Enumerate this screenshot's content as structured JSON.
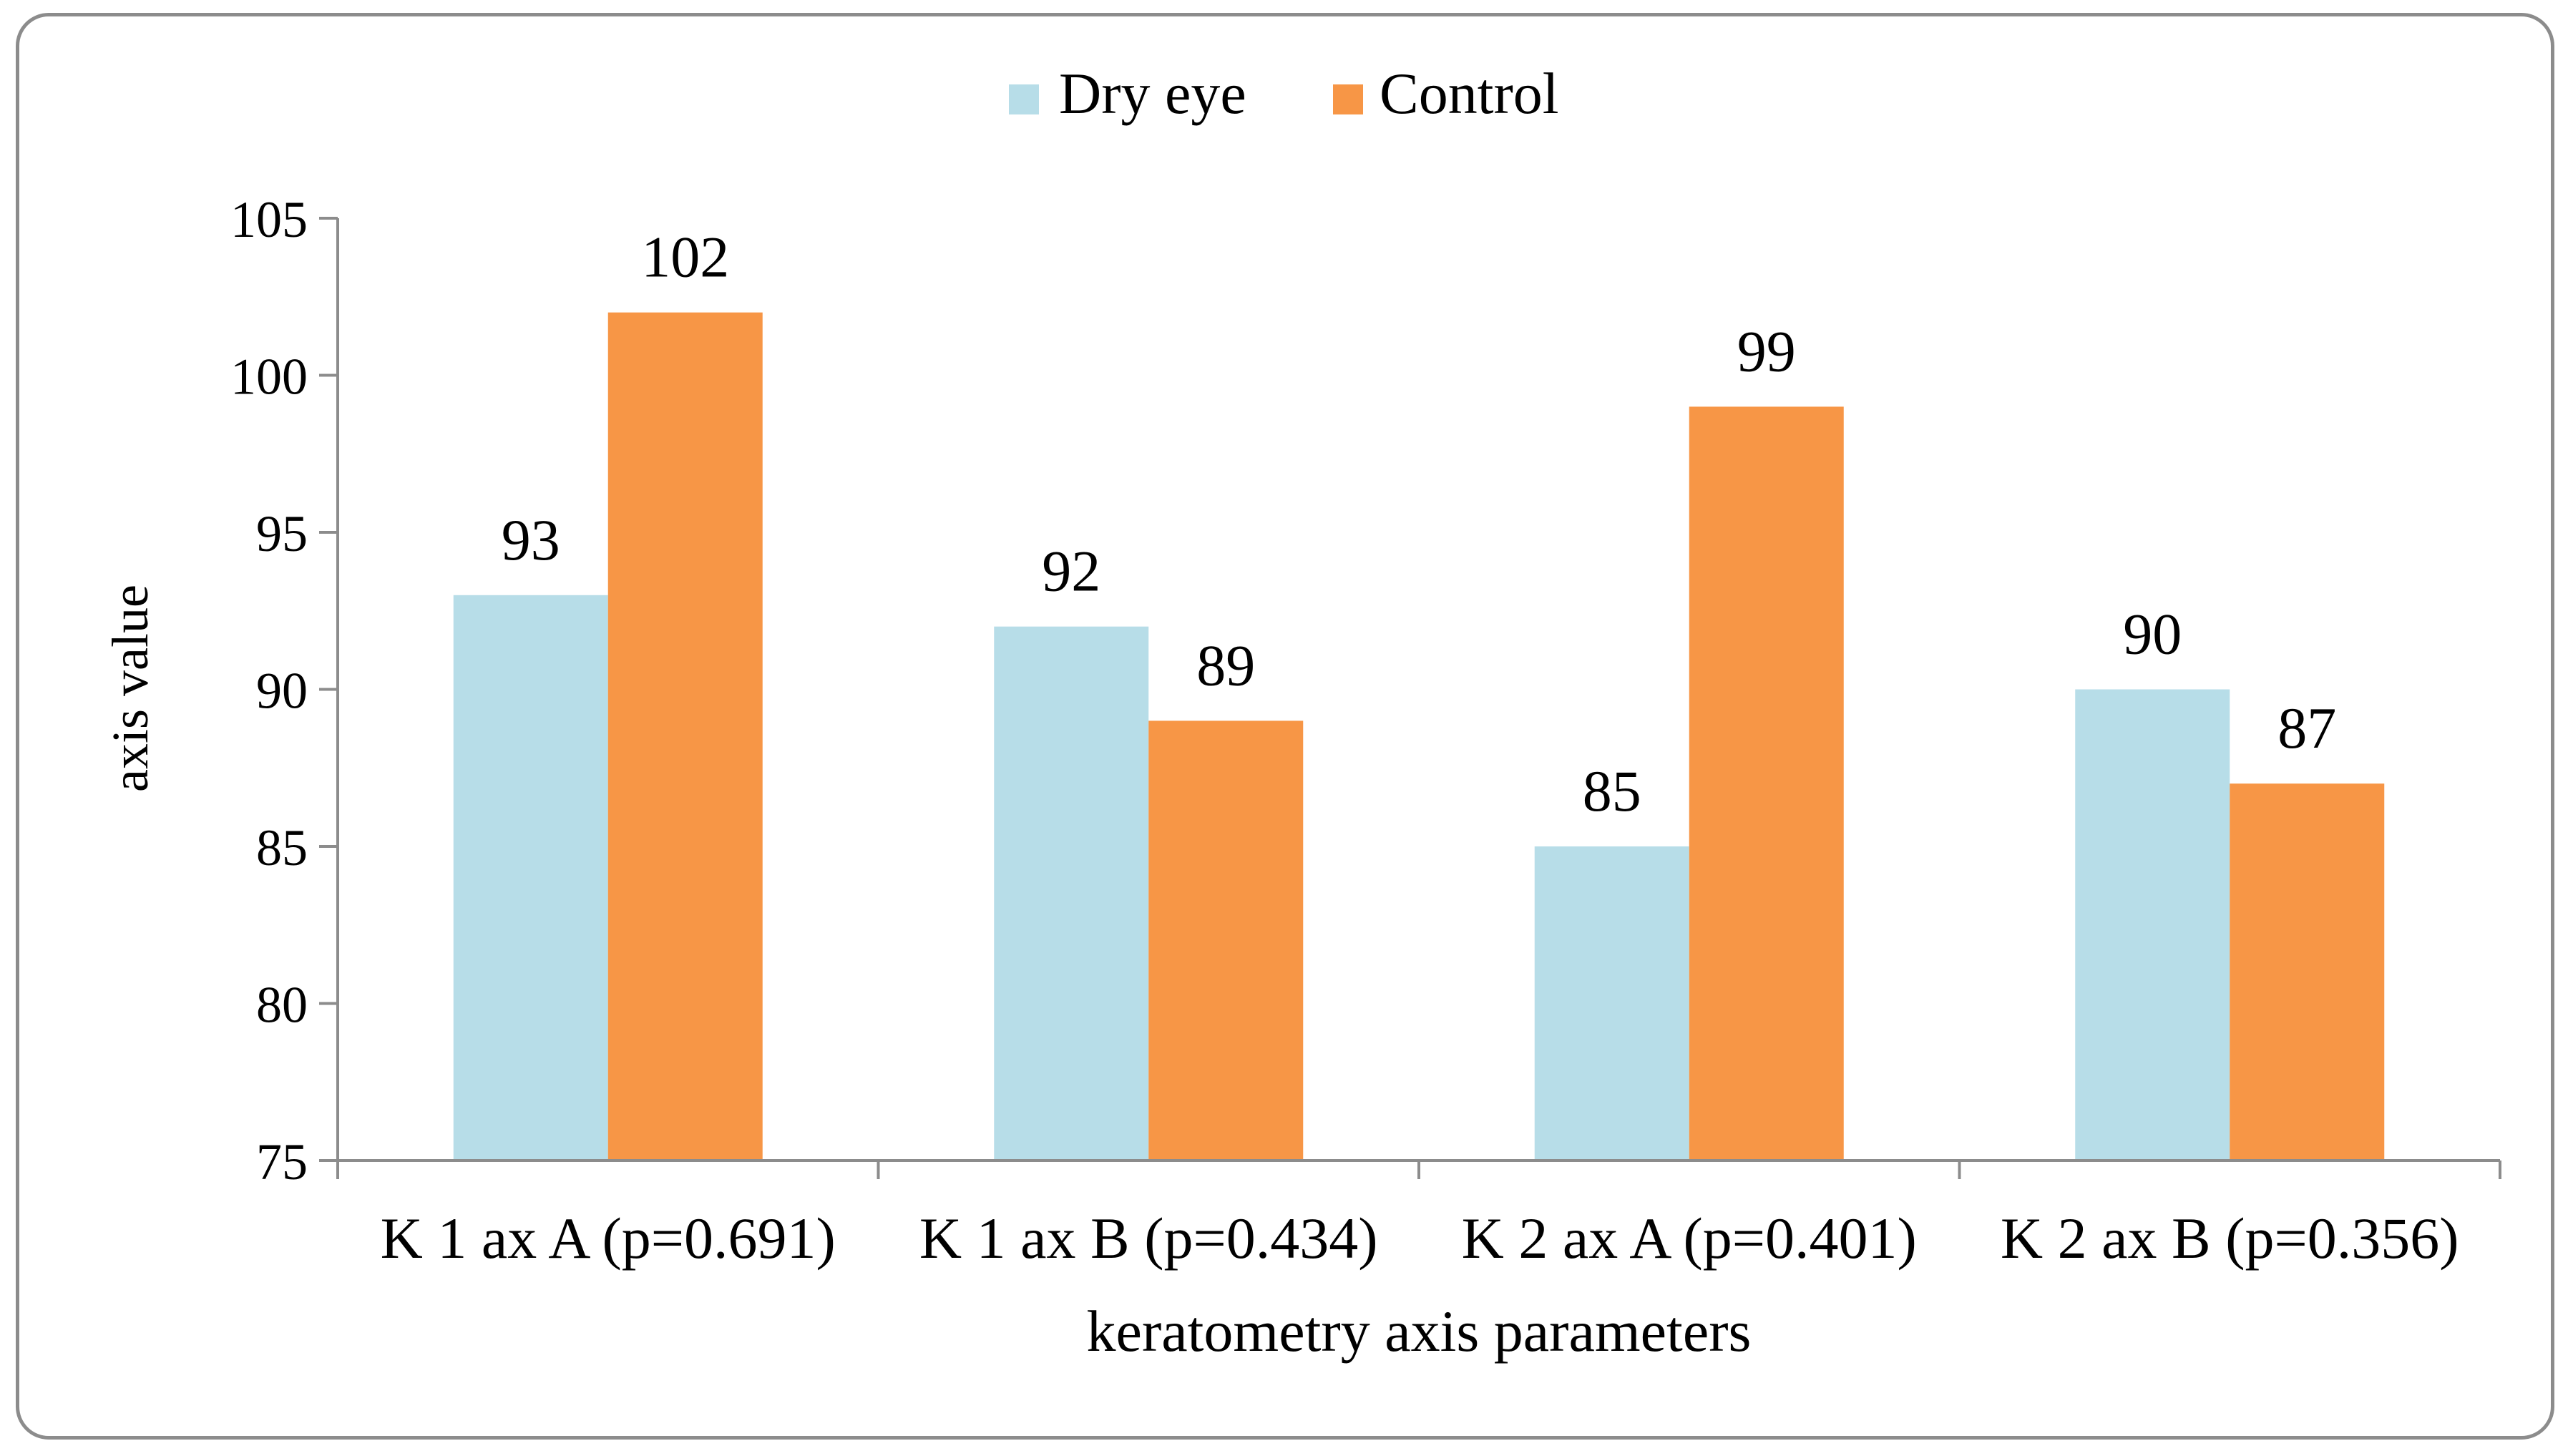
{
  "chart_data": {
    "type": "bar",
    "title": "",
    "xlabel": "keratometry axis parameters",
    "ylabel": "axis value",
    "categories": [
      "K 1 ax A (p=0.691)",
      "K 1 ax B (p=0.434)",
      "K 2 ax A (p=0.401)",
      "K 2 ax B (p=0.356)"
    ],
    "series": [
      {
        "name": "Dry eye",
        "values": [
          93,
          92,
          85,
          90
        ],
        "color": "#b7dde8"
      },
      {
        "name": "Control",
        "values": [
          102,
          89,
          99,
          87
        ],
        "color": "#f79646"
      }
    ],
    "ylim": [
      75,
      105
    ],
    "yticks": [
      75,
      80,
      85,
      90,
      95,
      100,
      105
    ],
    "grid": false,
    "legend_position": "top-center",
    "data_labels": true
  }
}
